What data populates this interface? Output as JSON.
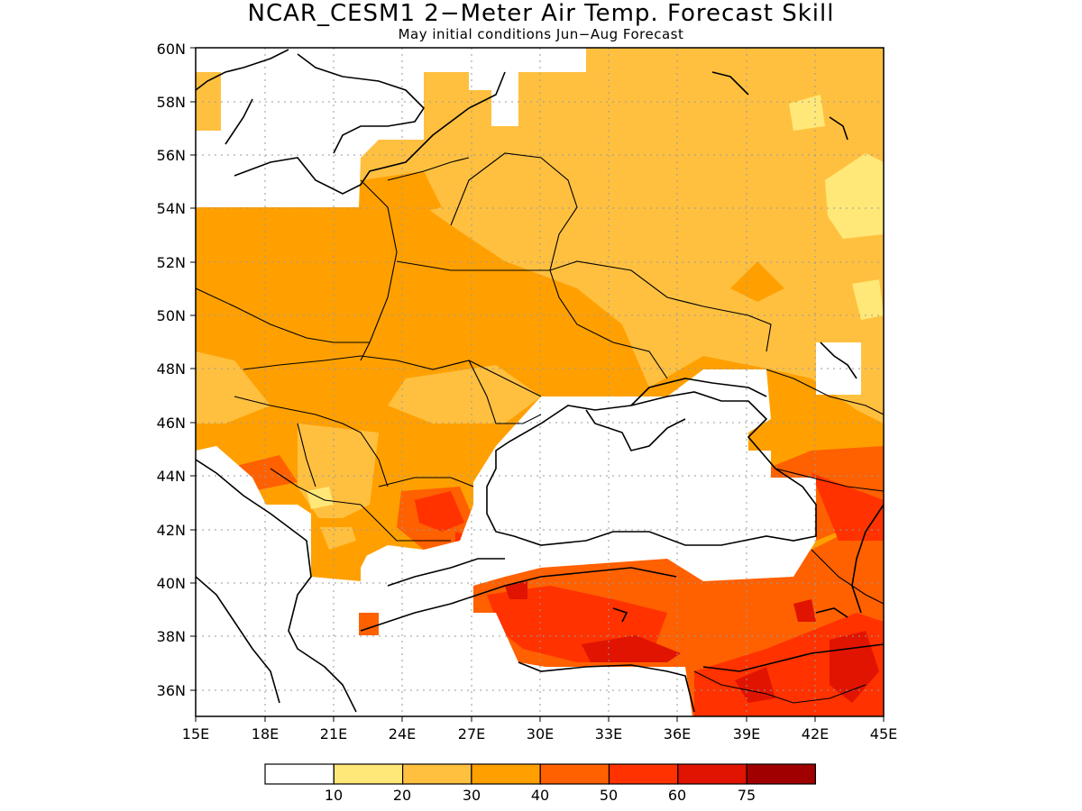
{
  "title": "NCAR_CESM1 2−Meter Air Temp. Forecast Skill",
  "subtitle": "May initial conditions  Jun−Aug Forecast",
  "map": {
    "lon_range": [
      15,
      45
    ],
    "lat_range": [
      35,
      60
    ],
    "lon_ticks": [
      "15E",
      "18E",
      "21E",
      "24E",
      "27E",
      "30E",
      "33E",
      "36E",
      "39E",
      "42E",
      "45E"
    ],
    "lat_ticks": [
      "36N",
      "38N",
      "40N",
      "42N",
      "44N",
      "46N",
      "48N",
      "50N",
      "52N",
      "54N",
      "56N",
      "58N",
      "60N"
    ],
    "grid": true
  },
  "colorbar": {
    "colors": [
      "#ffffff",
      "#ffe878",
      "#ffc040",
      "#ffa000",
      "#ff6000",
      "#ff3200",
      "#e01400",
      "#a00000"
    ],
    "labels": [
      "10",
      "20",
      "30",
      "40",
      "50",
      "60",
      "75"
    ]
  }
}
